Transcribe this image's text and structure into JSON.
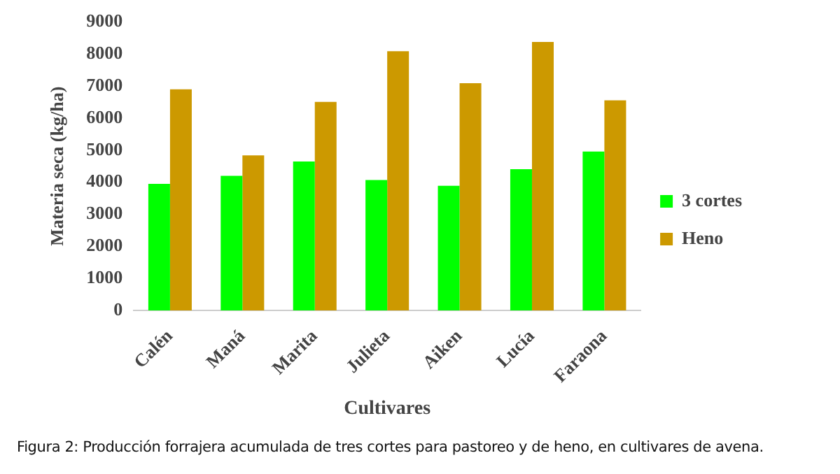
{
  "chart_data": {
    "type": "bar",
    "xlabel": "Cultivares",
    "ylabel": "Materia seca (kg/ha)",
    "categories": [
      "Calén",
      "Maná",
      "Marita",
      "Julieta",
      "Aiken",
      "Lucía",
      "Faraona"
    ],
    "series": [
      {
        "name": "3 cortes",
        "color": "#00ff00",
        "values": [
          3950,
          4200,
          4650,
          4070,
          3890,
          4410,
          4960
        ]
      },
      {
        "name": "Heno",
        "color": "#cc9900",
        "values": [
          6900,
          4840,
          6510,
          8090,
          7090,
          8380,
          6560
        ]
      }
    ],
    "ylim": [
      0,
      9000
    ],
    "yticks": [
      0,
      1000,
      2000,
      3000,
      4000,
      5000,
      6000,
      7000,
      8000,
      9000
    ],
    "grid": false,
    "legend": "right",
    "annotations": [
      "Figura 2: Producción forrajera acumulada de tres cortes para pastoreo y de heno, en cultivares de avena."
    ]
  }
}
